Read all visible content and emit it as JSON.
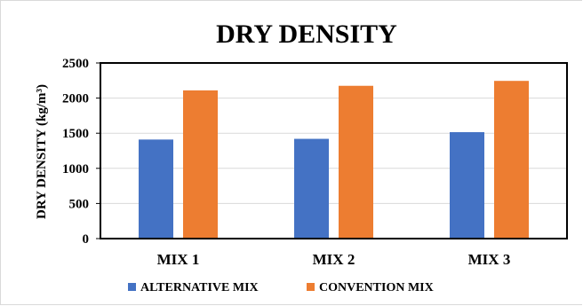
{
  "chart_data": {
    "type": "bar",
    "title": "DRY DENSITY",
    "xlabel": "",
    "ylabel": "DRY DENSITY (kg/m³)",
    "categories": [
      "MIX 1",
      "MIX 2",
      "MIX 3"
    ],
    "series": [
      {
        "name": "ALTERNATIVE MIX",
        "color": "#4472c4",
        "values": [
          1410,
          1420,
          1515
        ]
      },
      {
        "name": "CONVENTION MIX",
        "color": "#ed7d31",
        "values": [
          2110,
          2175,
          2245
        ]
      }
    ],
    "ylim": [
      0,
      2500
    ],
    "yticks": [
      "0",
      "500",
      "1000",
      "1500",
      "2000",
      "2500"
    ],
    "grid": true,
    "legend_position": "bottom"
  }
}
